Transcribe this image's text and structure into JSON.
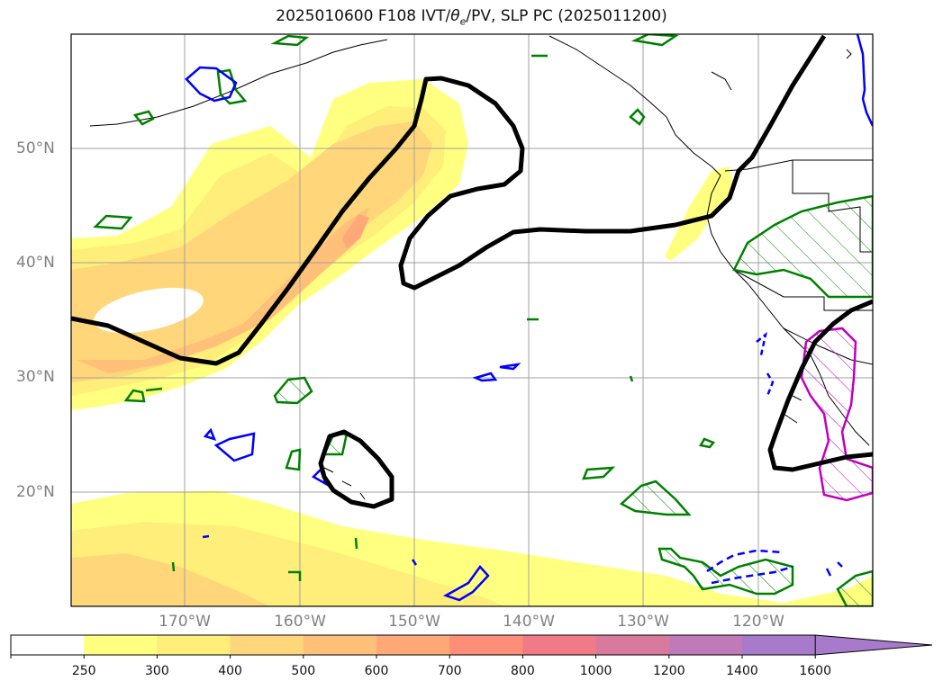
{
  "title_prefix": "2025010600 F108 IVT/",
  "title_theta": "θ",
  "title_sub": "e",
  "title_suffix": "/PV, SLP PC (2025011200)",
  "lat_labels": [
    "50°N",
    "40°N",
    "30°N",
    "20°N"
  ],
  "lon_labels": [
    "170°W",
    "160°W",
    "150°W",
    "140°W",
    "130°W",
    "120°W"
  ],
  "colorbar": {
    "levels": [
      "250",
      "300",
      "400",
      "500",
      "600",
      "700",
      "800",
      "1000",
      "1200",
      "1400",
      "1600"
    ],
    "colors": [
      "#ffffff",
      "#ffff80",
      "#ffee7a",
      "#ffd77a",
      "#ffc07a",
      "#ffa878",
      "#ff8e78",
      "#f07a86",
      "#d87a9e",
      "#c07ab8",
      "#a87acc"
    ]
  },
  "colors": {
    "slp_contour": "#000000",
    "pv_green": "#008000",
    "pv_blue": "#0000ff",
    "pv_magenta": "#c000c0",
    "grid": "#a0a0a0"
  }
}
